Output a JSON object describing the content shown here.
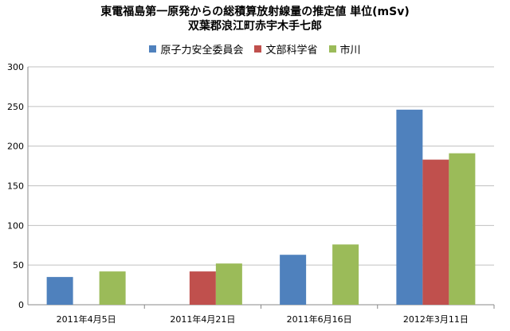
{
  "chart_data": {
    "type": "bar",
    "title": "東電福島第一原発からの総積算放射線量の推定値 単位(mSv)",
    "subtitle": "双葉郡浪江町赤宇木手七郎",
    "categories": [
      "2011年4月5日",
      "2011年4月21日",
      "2011年6月16日",
      "2012年3月11日"
    ],
    "series": [
      {
        "name": "原子力安全委員会",
        "color": "#4F81BD",
        "values": [
          35,
          null,
          63,
          246
        ]
      },
      {
        "name": "文部科学省",
        "color": "#C0504D",
        "values": [
          null,
          42,
          null,
          183
        ]
      },
      {
        "name": "市川",
        "color": "#9BBB59",
        "values": [
          42,
          52,
          76,
          191
        ]
      }
    ],
    "ylim": [
      0,
      300
    ],
    "yticks": [
      0,
      50,
      100,
      150,
      200,
      250,
      300
    ],
    "grid": true,
    "legend_position": "top",
    "xlabel": "",
    "ylabel": ""
  }
}
